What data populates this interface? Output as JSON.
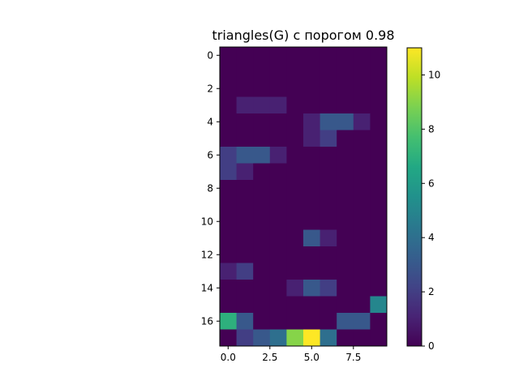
{
  "chart_data": {
    "type": "heatmap",
    "title": "triangles(G) с порогом 0.98",
    "xlabel": "",
    "ylabel": "",
    "rows": 18,
    "cols": 10,
    "x_ticks": [
      {
        "value": 0.0,
        "label": "0.0"
      },
      {
        "value": 2.5,
        "label": "2.5"
      },
      {
        "value": 5.0,
        "label": "5.0"
      },
      {
        "value": 7.5,
        "label": "7.5"
      }
    ],
    "y_ticks": [
      {
        "value": 0,
        "label": "0"
      },
      {
        "value": 2,
        "label": "2"
      },
      {
        "value": 4,
        "label": "4"
      },
      {
        "value": 6,
        "label": "6"
      },
      {
        "value": 8,
        "label": "8"
      },
      {
        "value": 10,
        "label": "10"
      },
      {
        "value": 12,
        "label": "12"
      },
      {
        "value": 14,
        "label": "14"
      },
      {
        "value": 16,
        "label": "16"
      }
    ],
    "values": [
      [
        0,
        0,
        0,
        0,
        0,
        0,
        0,
        0,
        0,
        0
      ],
      [
        0,
        0,
        0,
        0,
        0,
        0,
        0,
        0,
        0,
        0
      ],
      [
        0,
        0,
        0,
        0,
        0,
        0,
        0,
        0,
        0,
        0
      ],
      [
        0,
        1,
        1,
        1,
        0,
        0,
        0,
        0,
        0,
        0
      ],
      [
        0,
        0,
        0,
        0,
        0,
        1,
        3,
        3,
        1,
        0
      ],
      [
        0,
        0,
        0,
        0,
        0,
        1,
        2,
        0,
        0,
        0
      ],
      [
        2,
        3,
        3,
        1,
        0,
        0,
        0,
        0,
        0,
        0
      ],
      [
        2,
        1,
        0,
        0,
        0,
        0,
        0,
        0,
        0,
        0
      ],
      [
        0,
        0,
        0,
        0,
        0,
        0,
        0,
        0,
        0,
        0
      ],
      [
        0,
        0,
        0,
        0,
        0,
        0,
        0,
        0,
        0,
        0
      ],
      [
        0,
        0,
        0,
        0,
        0,
        0,
        0,
        0,
        0,
        0
      ],
      [
        0,
        0,
        0,
        0,
        0,
        3,
        1,
        0,
        0,
        0
      ],
      [
        0,
        0,
        0,
        0,
        0,
        0,
        0,
        0,
        0,
        0
      ],
      [
        1,
        2,
        0,
        0,
        0,
        0,
        0,
        0,
        0,
        0
      ],
      [
        0,
        0,
        0,
        0,
        1,
        3,
        2,
        0,
        0,
        0
      ],
      [
        0,
        0,
        0,
        0,
        0,
        0,
        0,
        0,
        0,
        5
      ],
      [
        7,
        3,
        0,
        0,
        0,
        0,
        0,
        3,
        3,
        0
      ],
      [
        0,
        2,
        3,
        4,
        9,
        11,
        4,
        0,
        0,
        0
      ]
    ],
    "colorbar": {
      "min": 0,
      "max": 11,
      "ticks": [
        {
          "value": 0,
          "label": "0"
        },
        {
          "value": 2,
          "label": "2"
        },
        {
          "value": 4,
          "label": "4"
        },
        {
          "value": 6,
          "label": "6"
        },
        {
          "value": 8,
          "label": "8"
        },
        {
          "value": 10,
          "label": "10"
        }
      ],
      "colormap": "viridis"
    },
    "grid": false
  }
}
